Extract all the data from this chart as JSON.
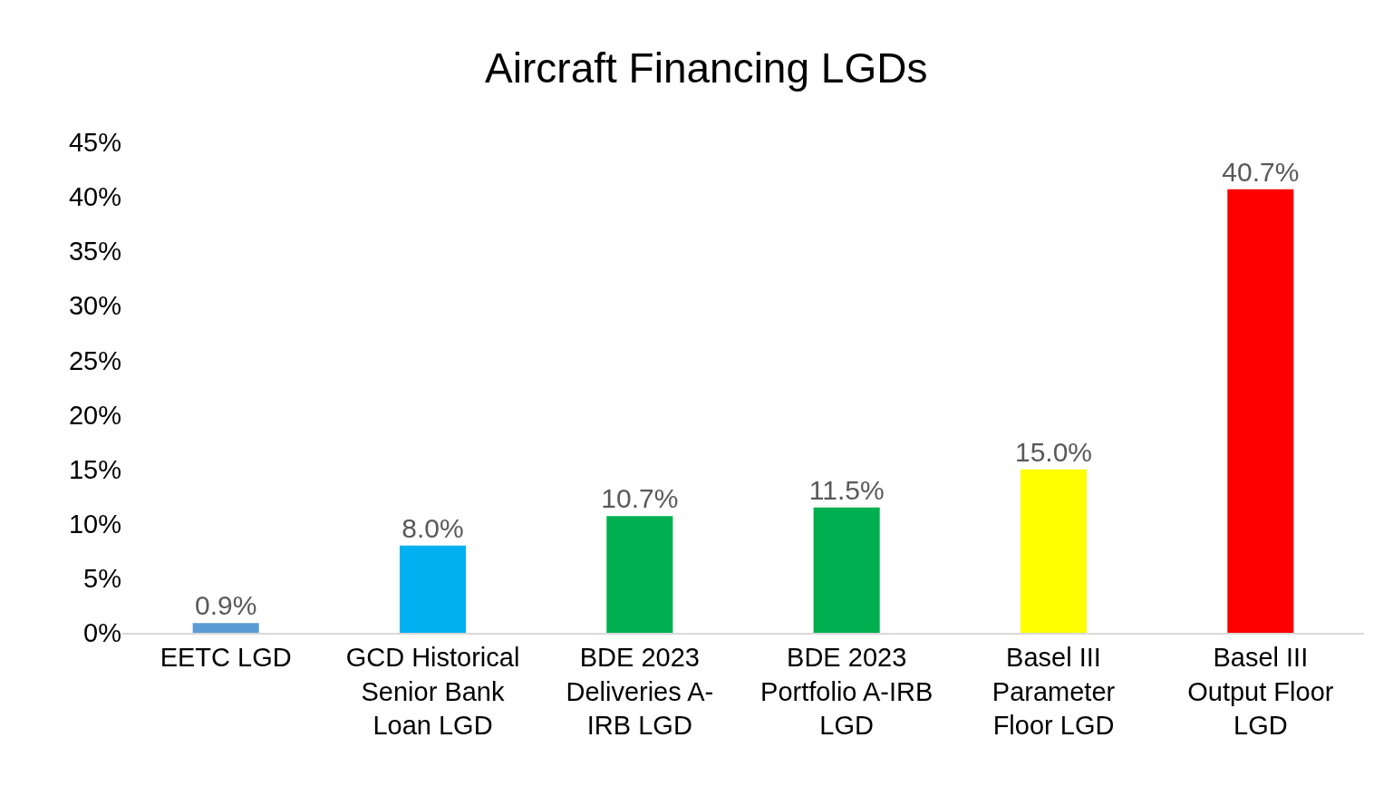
{
  "chart_data": {
    "type": "bar",
    "title": "Aircraft Financing LGDs",
    "categories": [
      "EETC LGD",
      "GCD Historical\nSenior Bank\nLoan LGD",
      "BDE 2023\nDeliveries A-\nIRB LGD",
      "BDE 2023\nPortfolio A-IRB\nLGD",
      "Basel III\nParameter\nFloor LGD",
      "Basel III\nOutput Floor\nLGD"
    ],
    "values": [
      0.9,
      8.0,
      10.7,
      11.5,
      15.0,
      40.7
    ],
    "colors": [
      "#5b9bd5",
      "#00b0f0",
      "#00b050",
      "#00b050",
      "#ffff00",
      "#ff0000"
    ],
    "value_labels": [
      "0.9%",
      "8.0%",
      "10.7%",
      "11.5%",
      "15.0%",
      "40.7%"
    ],
    "ylim": [
      0,
      45
    ],
    "yticks": [
      {
        "value": 0,
        "label": "0%"
      },
      {
        "value": 5,
        "label": "5%"
      },
      {
        "value": 10,
        "label": "10%"
      },
      {
        "value": 15,
        "label": "15%"
      },
      {
        "value": 20,
        "label": "20%"
      },
      {
        "value": 25,
        "label": "25%"
      },
      {
        "value": 30,
        "label": "30%"
      },
      {
        "value": 35,
        "label": "35%"
      },
      {
        "value": 40,
        "label": "40%"
      },
      {
        "value": 45,
        "label": "45%"
      }
    ],
    "grid": false
  }
}
